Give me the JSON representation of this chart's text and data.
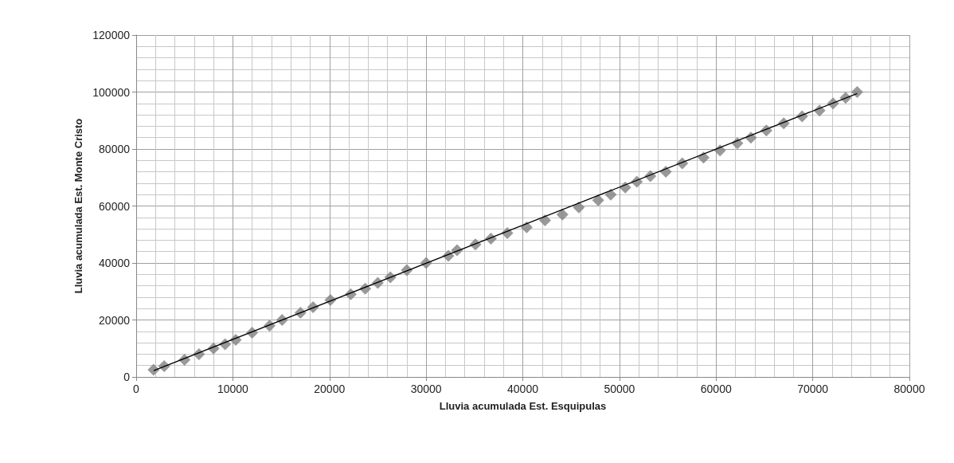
{
  "chart_data": {
    "type": "scatter",
    "xlabel": "Lluvia acumulada Est. Esquipulas",
    "ylabel": "Lluvia acumulada Est. Monte Cristo",
    "xlim": [
      0,
      80000
    ],
    "xticks": [
      0,
      10000,
      20000,
      30000,
      40000,
      50000,
      60000,
      70000,
      80000
    ],
    "ylim": [
      0,
      120000
    ],
    "yticks": [
      0,
      20000,
      40000,
      60000,
      80000,
      100000,
      120000
    ],
    "grid": true,
    "marker": "diamond",
    "series": [
      {
        "color": "#808080",
        "x": [
          1800,
          2900,
          5000,
          6500,
          8000,
          9200,
          10300,
          12000,
          13800,
          15100,
          17000,
          18300,
          20100,
          22200,
          23700,
          25000,
          26300,
          28000,
          30000,
          32300,
          33200,
          35100,
          36700,
          38400,
          40400,
          42300,
          44100,
          45800,
          47800,
          49100,
          50600,
          51800,
          53200,
          54800,
          56500,
          58700,
          60400,
          62200,
          63600,
          65200,
          67000,
          68900,
          70700,
          72100,
          73400,
          74600
        ],
        "values": [
          2500,
          3800,
          6000,
          8000,
          10000,
          11500,
          13000,
          15500,
          18000,
          20000,
          22500,
          24500,
          27000,
          29000,
          31000,
          33000,
          35000,
          37500,
          40000,
          42500,
          44500,
          46500,
          48500,
          50500,
          52500,
          55000,
          57000,
          59500,
          62000,
          64000,
          66500,
          68500,
          70500,
          72000,
          75000,
          77000,
          79500,
          82000,
          84000,
          86500,
          89000,
          91500,
          93500,
          96000,
          98000,
          100000
        ]
      },
      {
        "type": "line",
        "color": "#000000",
        "marker": "none",
        "x": [
          1800,
          74600
        ],
        "values": [
          2200,
          99500
        ]
      }
    ]
  }
}
